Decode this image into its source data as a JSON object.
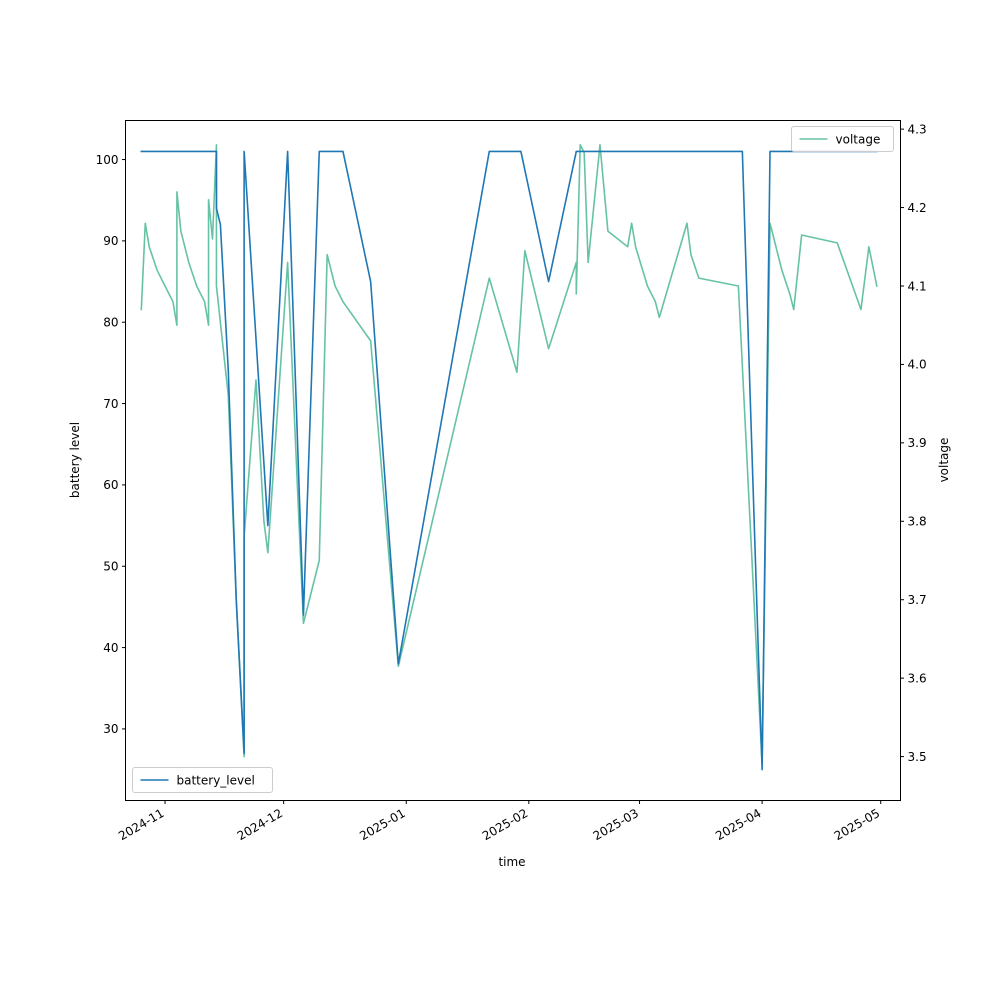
{
  "chart_data": {
    "type": "line",
    "xlabel": "time",
    "x_range": [
      "2024-10-22",
      "2025-05-06"
    ],
    "x_ticks": [
      "2024-11",
      "2024-12",
      "2025-01",
      "2025-02",
      "2025-03",
      "2025-04",
      "2025-05"
    ],
    "grid": false,
    "axes": [
      {
        "side": "left",
        "ylabel": "battery level",
        "ylim": [
          21.2,
          104.8
        ],
        "yticks": [
          30,
          40,
          50,
          60,
          70,
          80,
          90,
          100
        ],
        "color": "#1f77b4",
        "legend": "bottom-left",
        "series": {
          "name": "battery_level",
          "points": [
            [
              "2024-10-26",
              101
            ],
            [
              "2024-11-14",
              101
            ],
            [
              "2024-11-14",
              94
            ],
            [
              "2024-11-15",
              92
            ],
            [
              "2024-11-17",
              74
            ],
            [
              "2024-11-19",
              46
            ],
            [
              "2024-11-21",
              27
            ],
            [
              "2024-11-21",
              101
            ],
            [
              "2024-11-24",
              78
            ],
            [
              "2024-11-27",
              55
            ],
            [
              "2024-12-02",
              101
            ],
            [
              "2024-12-06",
              44
            ],
            [
              "2024-12-10",
              101
            ],
            [
              "2024-12-16",
              101
            ],
            [
              "2024-12-23",
              85
            ],
            [
              "2024-12-30",
              38
            ],
            [
              "2025-01-22",
              101
            ],
            [
              "2025-01-30",
              101
            ],
            [
              "2025-02-06",
              85
            ],
            [
              "2025-02-13",
              101
            ],
            [
              "2025-03-27",
              101
            ],
            [
              "2025-04-01",
              25
            ],
            [
              "2025-04-03",
              101
            ],
            [
              "2025-04-30",
              101
            ]
          ]
        }
      },
      {
        "side": "right",
        "ylabel": "voltage",
        "ylim": [
          3.444,
          4.311
        ],
        "yticks": [
          3.5,
          3.6,
          3.7,
          3.8,
          3.9,
          4.0,
          4.1,
          4.2,
          4.3
        ],
        "color": "#66c2a5",
        "legend": "top-right",
        "series": {
          "name": "voltage",
          "points": [
            [
              "2024-10-26",
              4.07
            ],
            [
              "2024-10-27",
              4.18
            ],
            [
              "2024-10-28",
              4.15
            ],
            [
              "2024-10-30",
              4.12
            ],
            [
              "2024-11-01",
              4.1
            ],
            [
              "2024-11-03",
              4.08
            ],
            [
              "2024-11-04",
              4.05
            ],
            [
              "2024-11-04",
              4.22
            ],
            [
              "2024-11-05",
              4.17
            ],
            [
              "2024-11-07",
              4.13
            ],
            [
              "2024-11-09",
              4.1
            ],
            [
              "2024-11-11",
              4.08
            ],
            [
              "2024-11-12",
              4.05
            ],
            [
              "2024-11-12",
              4.21
            ],
            [
              "2024-11-13",
              4.16
            ],
            [
              "2024-11-14",
              4.28
            ],
            [
              "2024-11-14",
              4.1
            ],
            [
              "2024-11-17",
              3.96
            ],
            [
              "2024-11-19",
              3.7
            ],
            [
              "2024-11-21",
              3.5
            ],
            [
              "2024-11-21",
              3.78
            ],
            [
              "2024-11-24",
              3.98
            ],
            [
              "2024-11-26",
              3.8
            ],
            [
              "2024-11-27",
              3.76
            ],
            [
              "2024-12-02",
              4.13
            ],
            [
              "2024-12-06",
              3.67
            ],
            [
              "2024-12-10",
              3.75
            ],
            [
              "2024-12-12",
              4.14
            ],
            [
              "2024-12-14",
              4.1
            ],
            [
              "2024-12-16",
              4.08
            ],
            [
              "2024-12-23",
              4.03
            ],
            [
              "2024-12-30",
              3.615
            ],
            [
              "2025-01-22",
              4.11
            ],
            [
              "2025-01-29",
              3.99
            ],
            [
              "2025-01-31",
              4.145
            ],
            [
              "2025-02-06",
              4.02
            ],
            [
              "2025-02-13",
              4.13
            ],
            [
              "2025-02-13",
              4.09
            ],
            [
              "2025-02-14",
              4.28
            ],
            [
              "2025-02-15",
              4.27
            ],
            [
              "2025-02-16",
              4.13
            ],
            [
              "2025-02-19",
              4.28
            ],
            [
              "2025-02-21",
              4.17
            ],
            [
              "2025-02-26",
              4.15
            ],
            [
              "2025-02-27",
              4.18
            ],
            [
              "2025-02-28",
              4.15
            ],
            [
              "2025-03-03",
              4.1
            ],
            [
              "2025-03-05",
              4.08
            ],
            [
              "2025-03-06",
              4.06
            ],
            [
              "2025-03-13",
              4.18
            ],
            [
              "2025-03-14",
              4.14
            ],
            [
              "2025-03-16",
              4.11
            ],
            [
              "2025-03-26",
              4.1
            ],
            [
              "2025-04-01",
              3.49
            ],
            [
              "2025-04-03",
              4.18
            ],
            [
              "2025-04-06",
              4.12
            ],
            [
              "2025-04-08",
              4.09
            ],
            [
              "2025-04-09",
              4.07
            ],
            [
              "2025-04-11",
              4.165
            ],
            [
              "2025-04-20",
              4.155
            ],
            [
              "2025-04-26",
              4.07
            ],
            [
              "2025-04-28",
              4.15
            ],
            [
              "2025-04-30",
              4.1
            ]
          ]
        }
      }
    ]
  }
}
